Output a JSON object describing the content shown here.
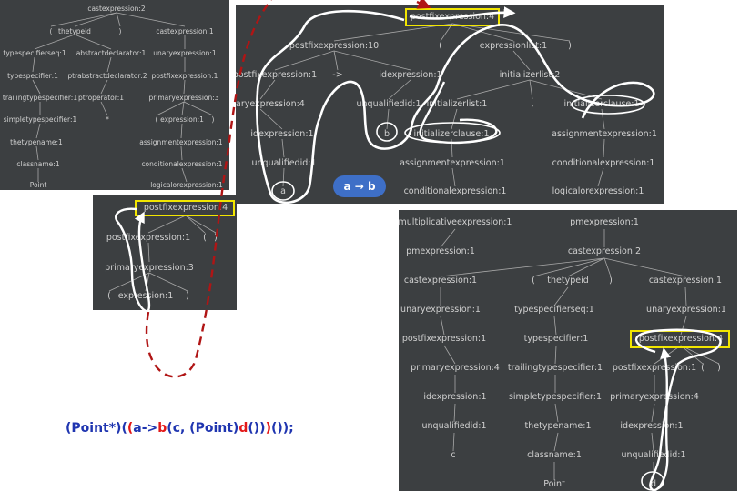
{
  "panels": {
    "a": {
      "nodes": [
        "castexpression:2",
        "(",
        "thetypeid",
        ")",
        "castexpression:1",
        "typespecifierseq:1",
        "abstractdeclarator:1",
        "unaryexpression:1",
        "typespecifier:1",
        "ptrabstractdeclarator:2",
        "postfixexpression:1",
        "trailingtypespecifier:1",
        "ptroperator:1",
        "primaryexpression:3",
        "simpletypespecifier:1",
        "*",
        "(",
        "expression:1",
        ")",
        "thetypename:1",
        "assignmentexpression:1",
        "classname:1",
        "conditionalexpression:1",
        "Point",
        "logicalorexpression:1"
      ]
    },
    "b": {
      "nodes": [
        "postfixexpression:4",
        "postfixexpression:1",
        "(",
        ")",
        "primaryexpression:3",
        "(",
        "expression:1",
        ")"
      ]
    },
    "c": {
      "nodes": [
        "postfixexpression:4",
        "postfixexpression:10",
        "(",
        "expressionlist:1",
        ")",
        "postfixexpression:1",
        "->",
        "idexpression:1",
        "initializerlist:2",
        "primaryexpression:4",
        "unqualifiedid:1",
        "initializerlist:1",
        ",",
        "initializerclause:1",
        "idexpression:1",
        "b",
        "initializerclause:1",
        "assignmentexpression:1",
        "unqualifiedid:1",
        "assignmentexpression:1",
        "conditionalexpression:1",
        "a",
        "conditionalexpression:1",
        "logicalorexpression:1"
      ]
    },
    "d": {
      "nodes": [
        "multiplicativeexpression:1",
        "pmexpression:1",
        "pmexpression:1",
        "castexpression:2",
        "castexpression:1",
        "(",
        "thetypeid",
        ")",
        "castexpression:1",
        "unaryexpression:1",
        "typespecifierseq:1",
        "unaryexpression:1",
        "postfixexpression:1",
        "typespecifier:1",
        "postfixexpression:4",
        "primaryexpression:4",
        "trailingtypespecifier:1",
        "postfixexpression:1",
        "(",
        ")",
        "idexpression:1",
        "simpletypespecifier:1",
        "primaryexpression:4",
        "unqualifiedid:1",
        "thetypename:1",
        "idexpression:1",
        "c",
        "classname:1",
        "unqualifiedid:1",
        "Point",
        "d"
      ]
    }
  },
  "badge": {
    "text": "a → b"
  },
  "code": {
    "parts": [
      "(Point*)(",
      "(",
      "a->",
      "b",
      "(c, (Point)",
      "d",
      "())",
      ")",
      "());"
    ]
  },
  "colors": {
    "panel_bg": "#3c3f41",
    "node_text": "#d0d0d0",
    "highlight": "#f2e600",
    "dashed_arrow": "#b01515",
    "badge_bg": "#3e6fc7",
    "code_blue": "#1f35b0",
    "code_red": "#e31818"
  }
}
